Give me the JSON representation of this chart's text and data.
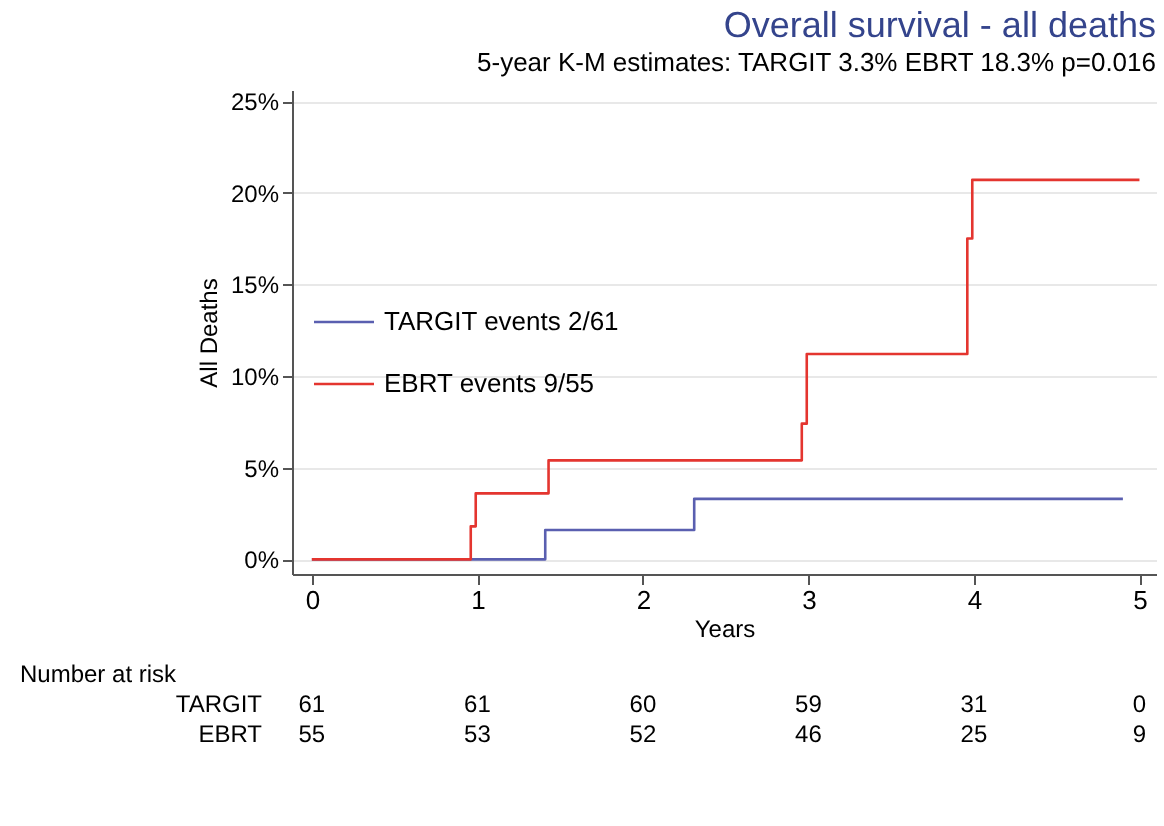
{
  "chart_data": {
    "type": "step",
    "title": "Overall survival - all deaths",
    "subtitle": "5-year K-M estimates: TARGIT 3.3% EBRT 18.3% p=0.016",
    "xlabel": "Years",
    "ylabel": "All Deaths",
    "series": [
      {
        "name": "TARGIT events 2/61",
        "color": "#5a5fb0",
        "x": [
          0,
          1.41,
          2.31,
          4.9
        ],
        "values": [
          0,
          1.6,
          3.3,
          3.3
        ]
      },
      {
        "name": "EBRT events 9/55",
        "color": "#e4352f",
        "x": [
          0,
          0.96,
          0.99,
          1.43,
          2.96,
          2.99,
          3.96,
          3.99,
          5.0
        ],
        "values": [
          0,
          1.8,
          3.6,
          5.4,
          7.4,
          11.2,
          17.5,
          20.7,
          20.7
        ]
      }
    ],
    "xlim": [
      -0.12,
      5.1
    ],
    "xticks": [
      0,
      1,
      2,
      3,
      4,
      5
    ],
    "ylim": [
      -0.8,
      25.6
    ],
    "yticks": [
      {
        "value": 0,
        "label": "0%"
      },
      {
        "value": 5,
        "label": "5%"
      },
      {
        "value": 10,
        "label": "10%"
      },
      {
        "value": 15,
        "label": "15%"
      },
      {
        "value": 20,
        "label": "20%"
      },
      {
        "value": 25,
        "label": "25%"
      }
    ],
    "grid": "y",
    "legend": "left",
    "annotations": [
      "Number at risk",
      "TARGIT",
      "61",
      "61",
      "60",
      "59",
      "31",
      "0",
      "EBRT",
      "55",
      "53",
      "52",
      "46",
      "25",
      "9"
    ]
  }
}
